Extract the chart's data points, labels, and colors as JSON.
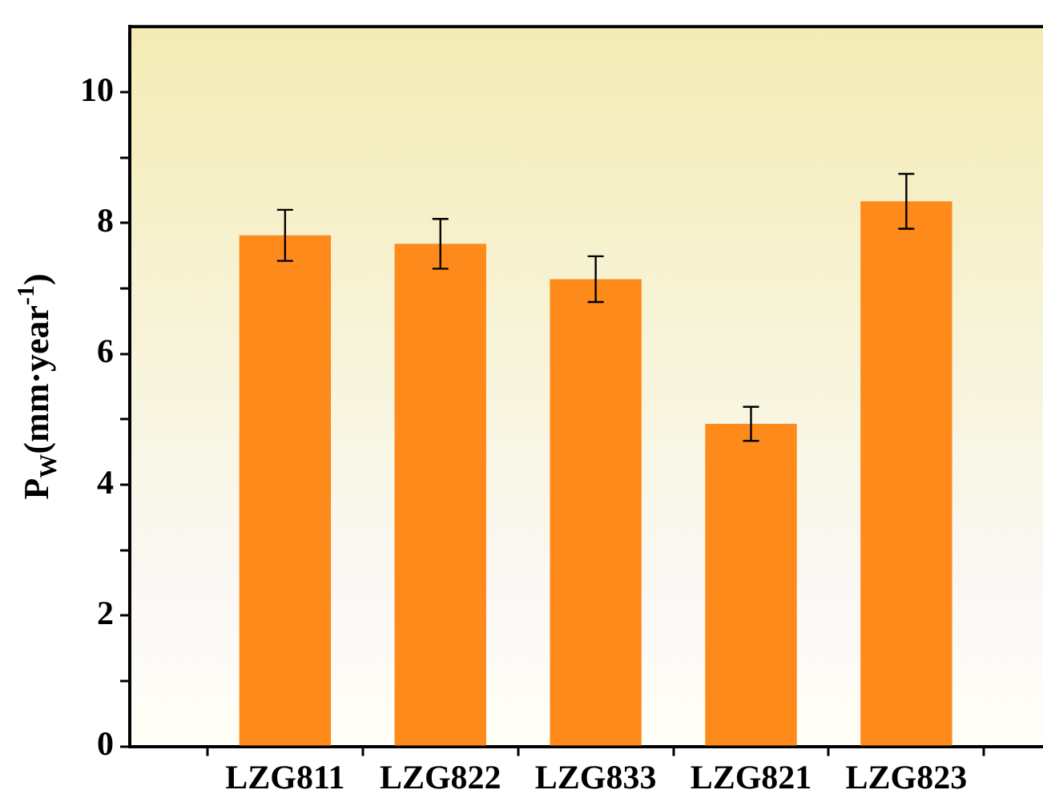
{
  "chart_data": {
    "type": "bar",
    "ylabel": "P$_{W}$(mm·year$^{-1}$)",
    "categories": [
      "LZG811",
      "LZG822",
      "LZG833",
      "LZG821",
      "LZG823"
    ],
    "values": [
      7.81,
      7.68,
      7.14,
      4.93,
      8.33
    ],
    "errors": [
      0.39,
      0.38,
      0.35,
      0.26,
      0.42
    ],
    "color": "#ff8a1c",
    "ylim": [
      0,
      11
    ],
    "yticks": [
      0,
      {
        "value": 1,
        "label": null
      },
      2,
      {
        "value": 3,
        "label": null
      },
      4,
      {
        "value": 5,
        "label": null
      },
      6,
      {
        "value": 7,
        "label": null
      },
      8,
      {
        "value": 9,
        "label": null
      },
      10
    ],
    "grid": false,
    "legend": false
  }
}
